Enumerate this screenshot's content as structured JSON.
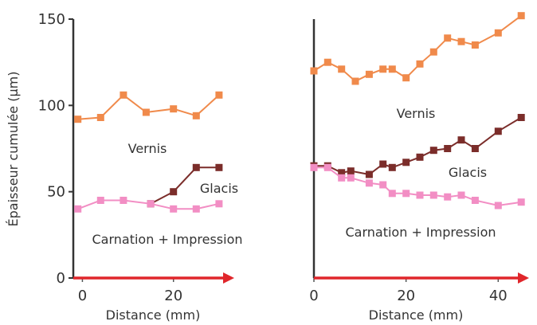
{
  "chart_data": [
    {
      "type": "line",
      "ylabel": "Épaisseur cumulée (µm)",
      "xlabel": "Distance (mm)",
      "xlim": [
        -2,
        33
      ],
      "ylim": [
        0,
        150
      ],
      "x_ticks": [
        0,
        20
      ],
      "y_ticks": [
        0,
        50,
        100,
        150
      ],
      "grid": false,
      "annotations": [
        "Vernis",
        "Glacis",
        "Carnation + Impression"
      ],
      "series": [
        {
          "color": "#f08a4b",
          "x": [
            -1,
            4,
            9,
            14,
            20,
            25,
            30
          ],
          "y": [
            92,
            93,
            106,
            96,
            98,
            94,
            106
          ]
        },
        {
          "color": "#7b2d2a",
          "x": [
            15,
            20,
            25,
            30
          ],
          "y": [
            43,
            50,
            64,
            64
          ]
        },
        {
          "color": "#f28ec4",
          "x": [
            -1,
            4,
            9,
            15,
            20,
            25,
            30
          ],
          "y": [
            40,
            45,
            45,
            43,
            40,
            40,
            43
          ]
        }
      ]
    },
    {
      "type": "line",
      "xlabel": "Distance (mm)",
      "xlim": [
        0,
        46
      ],
      "ylim": [
        0,
        150
      ],
      "x_ticks": [
        0,
        20,
        40
      ],
      "grid": false,
      "annotations": [
        "Vernis",
        "Glacis",
        "Carnation + Impression"
      ],
      "series": [
        {
          "color": "#f08a4b",
          "x": [
            0,
            3,
            6,
            9,
            12,
            15,
            17,
            20,
            23,
            26,
            29,
            32,
            35,
            40,
            45
          ],
          "y": [
            120,
            125,
            121,
            114,
            118,
            121,
            121,
            116,
            124,
            131,
            139,
            137,
            135,
            142,
            152
          ]
        },
        {
          "color": "#7b2d2a",
          "x": [
            0,
            3,
            6,
            8,
            12,
            15,
            17,
            20,
            23,
            26,
            29,
            32,
            35,
            40,
            45
          ],
          "y": [
            65,
            65,
            61,
            62,
            60,
            66,
            64,
            67,
            70,
            74,
            75,
            80,
            75,
            85,
            93
          ]
        },
        {
          "color": "#f28ec4",
          "x": [
            0,
            3,
            6,
            8,
            12,
            15,
            17,
            20,
            23,
            26,
            29,
            32,
            35,
            40,
            45
          ],
          "y": [
            64,
            64,
            58,
            58,
            55,
            54,
            49,
            49,
            48,
            48,
            47,
            48,
            45,
            42,
            44
          ]
        }
      ]
    }
  ]
}
